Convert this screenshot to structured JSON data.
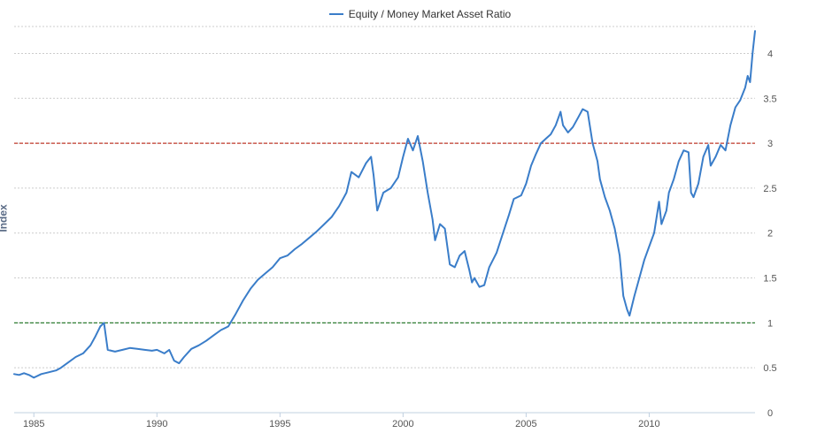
{
  "chart_data": {
    "type": "line",
    "title": "",
    "ylabel": "Index",
    "xlabel": "",
    "ylim": [
      0,
      4.3
    ],
    "xlim": [
      1984.2,
      2014.3
    ],
    "yticks": [
      "0",
      "0.5",
      "1",
      "1.5",
      "2",
      "2.5",
      "3",
      "3.5",
      "4"
    ],
    "xticks": [
      "1985",
      "1990",
      "1995",
      "2000",
      "2005",
      "2010"
    ],
    "legend_position": "top-center",
    "grid": true,
    "series": [
      {
        "name": "Equity / Money Market Asset Ratio",
        "color": "#3a7dc9",
        "points": [
          [
            1984.2,
            0.43
          ],
          [
            1984.4,
            0.42
          ],
          [
            1984.6,
            0.44
          ],
          [
            1984.8,
            0.42
          ],
          [
            1985.0,
            0.39
          ],
          [
            1985.3,
            0.43
          ],
          [
            1985.6,
            0.45
          ],
          [
            1985.9,
            0.47
          ],
          [
            1986.1,
            0.5
          ],
          [
            1986.4,
            0.56
          ],
          [
            1986.7,
            0.62
          ],
          [
            1987.0,
            0.66
          ],
          [
            1987.3,
            0.75
          ],
          [
            1987.5,
            0.85
          ],
          [
            1987.7,
            0.96
          ],
          [
            1987.85,
            1.0
          ],
          [
            1988.0,
            0.7
          ],
          [
            1988.3,
            0.68
          ],
          [
            1988.6,
            0.7
          ],
          [
            1988.9,
            0.72
          ],
          [
            1989.2,
            0.71
          ],
          [
            1989.5,
            0.7
          ],
          [
            1989.8,
            0.69
          ],
          [
            1990.0,
            0.7
          ],
          [
            1990.3,
            0.66
          ],
          [
            1990.5,
            0.7
          ],
          [
            1990.7,
            0.58
          ],
          [
            1990.9,
            0.55
          ],
          [
            1991.1,
            0.62
          ],
          [
            1991.4,
            0.71
          ],
          [
            1991.7,
            0.75
          ],
          [
            1992.0,
            0.8
          ],
          [
            1992.3,
            0.86
          ],
          [
            1992.6,
            0.92
          ],
          [
            1992.9,
            0.96
          ],
          [
            1993.2,
            1.1
          ],
          [
            1993.5,
            1.25
          ],
          [
            1993.8,
            1.38
          ],
          [
            1994.1,
            1.48
          ],
          [
            1994.4,
            1.55
          ],
          [
            1994.7,
            1.62
          ],
          [
            1995.0,
            1.72
          ],
          [
            1995.3,
            1.75
          ],
          [
            1995.6,
            1.82
          ],
          [
            1995.9,
            1.88
          ],
          [
            1996.2,
            1.95
          ],
          [
            1996.5,
            2.02
          ],
          [
            1996.8,
            2.1
          ],
          [
            1997.1,
            2.18
          ],
          [
            1997.4,
            2.3
          ],
          [
            1997.7,
            2.45
          ],
          [
            1997.9,
            2.68
          ],
          [
            1998.2,
            2.62
          ],
          [
            1998.5,
            2.78
          ],
          [
            1998.7,
            2.85
          ],
          [
            1998.8,
            2.65
          ],
          [
            1998.95,
            2.25
          ],
          [
            1999.2,
            2.45
          ],
          [
            1999.5,
            2.5
          ],
          [
            1999.8,
            2.62
          ],
          [
            2000.0,
            2.85
          ],
          [
            2000.2,
            3.05
          ],
          [
            2000.4,
            2.92
          ],
          [
            2000.6,
            3.08
          ],
          [
            2000.8,
            2.8
          ],
          [
            2001.0,
            2.45
          ],
          [
            2001.2,
            2.15
          ],
          [
            2001.3,
            1.92
          ],
          [
            2001.5,
            2.1
          ],
          [
            2001.7,
            2.05
          ],
          [
            2001.9,
            1.65
          ],
          [
            2002.1,
            1.62
          ],
          [
            2002.3,
            1.75
          ],
          [
            2002.5,
            1.8
          ],
          [
            2002.7,
            1.58
          ],
          [
            2002.8,
            1.45
          ],
          [
            2002.9,
            1.5
          ],
          [
            2003.1,
            1.4
          ],
          [
            2003.3,
            1.42
          ],
          [
            2003.5,
            1.62
          ],
          [
            2003.8,
            1.78
          ],
          [
            2004.0,
            1.95
          ],
          [
            2004.3,
            2.2
          ],
          [
            2004.5,
            2.38
          ],
          [
            2004.8,
            2.42
          ],
          [
            2005.0,
            2.55
          ],
          [
            2005.2,
            2.75
          ],
          [
            2005.4,
            2.88
          ],
          [
            2005.6,
            3.0
          ],
          [
            2005.8,
            3.05
          ],
          [
            2006.0,
            3.1
          ],
          [
            2006.2,
            3.2
          ],
          [
            2006.4,
            3.35
          ],
          [
            2006.5,
            3.2
          ],
          [
            2006.7,
            3.12
          ],
          [
            2006.9,
            3.18
          ],
          [
            2007.1,
            3.28
          ],
          [
            2007.3,
            3.38
          ],
          [
            2007.5,
            3.35
          ],
          [
            2007.7,
            3.0
          ],
          [
            2007.9,
            2.8
          ],
          [
            2008.0,
            2.6
          ],
          [
            2008.2,
            2.4
          ],
          [
            2008.4,
            2.25
          ],
          [
            2008.6,
            2.05
          ],
          [
            2008.8,
            1.75
          ],
          [
            2008.95,
            1.3
          ],
          [
            2009.1,
            1.15
          ],
          [
            2009.2,
            1.08
          ],
          [
            2009.4,
            1.3
          ],
          [
            2009.6,
            1.5
          ],
          [
            2009.8,
            1.7
          ],
          [
            2010.0,
            1.85
          ],
          [
            2010.2,
            2.0
          ],
          [
            2010.4,
            2.35
          ],
          [
            2010.5,
            2.1
          ],
          [
            2010.7,
            2.25
          ],
          [
            2010.8,
            2.45
          ],
          [
            2011.0,
            2.6
          ],
          [
            2011.2,
            2.8
          ],
          [
            2011.4,
            2.92
          ],
          [
            2011.6,
            2.9
          ],
          [
            2011.7,
            2.45
          ],
          [
            2011.8,
            2.4
          ],
          [
            2012.0,
            2.55
          ],
          [
            2012.2,
            2.85
          ],
          [
            2012.4,
            2.98
          ],
          [
            2012.5,
            2.75
          ],
          [
            2012.7,
            2.85
          ],
          [
            2012.9,
            2.98
          ],
          [
            2013.1,
            2.92
          ],
          [
            2013.3,
            3.2
          ],
          [
            2013.5,
            3.4
          ],
          [
            2013.7,
            3.48
          ],
          [
            2013.9,
            3.62
          ],
          [
            2014.0,
            3.75
          ],
          [
            2014.1,
            3.68
          ],
          [
            2014.2,
            4.0
          ],
          [
            2014.3,
            4.25
          ]
        ]
      }
    ],
    "reference_lines": [
      {
        "y": 3,
        "color": "#c0392b"
      },
      {
        "y": 1,
        "color": "#2e7d32"
      }
    ]
  }
}
